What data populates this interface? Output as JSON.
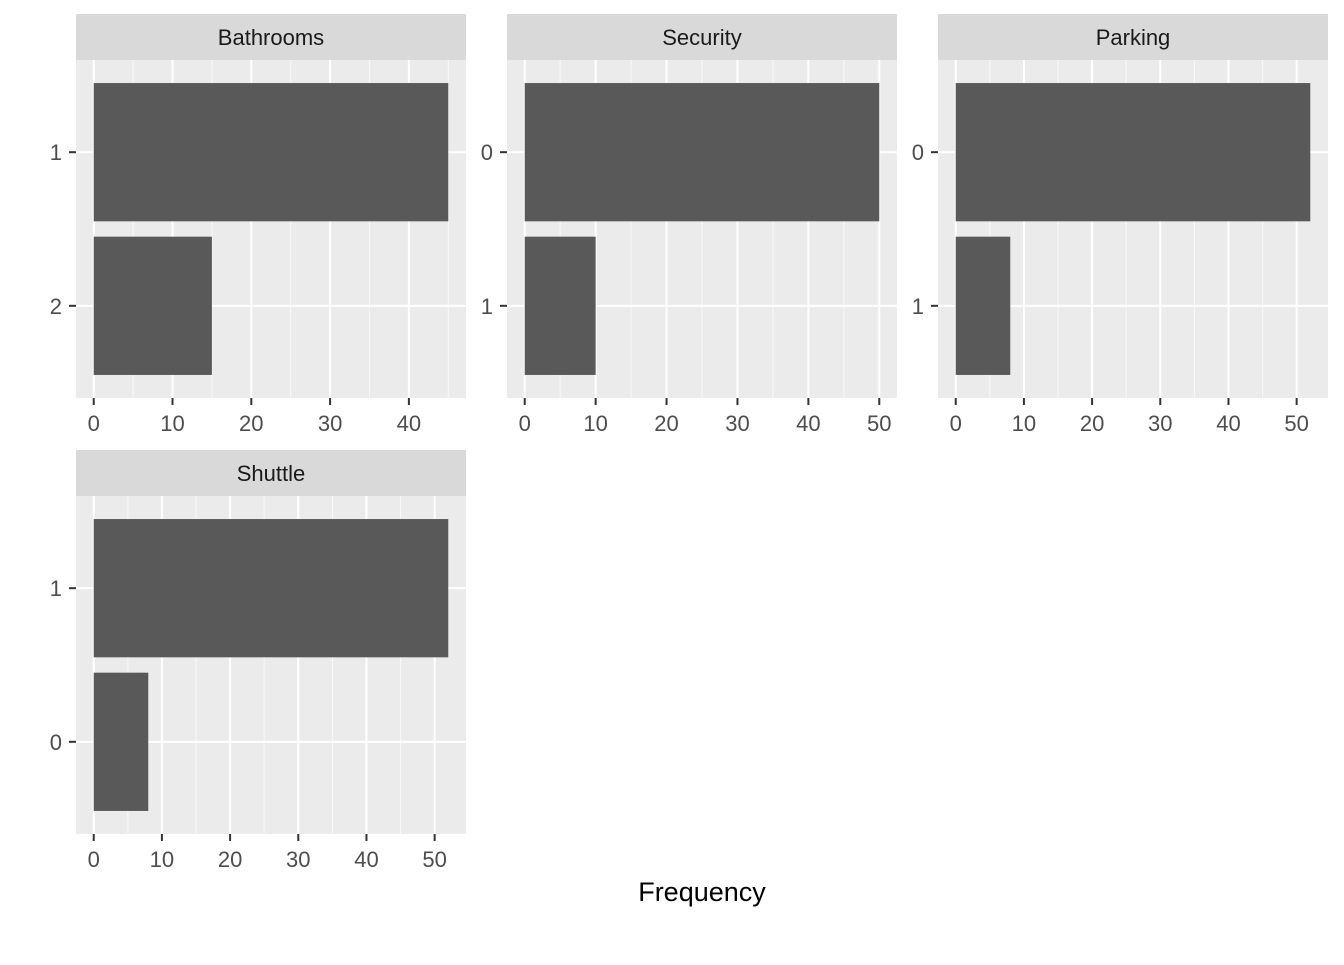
{
  "chart_data": {
    "type": "bar",
    "orientation": "horizontal",
    "facet_layout": "wrap",
    "xlabel": "Frequency",
    "ylabel": "",
    "grid": true,
    "colors": {
      "bar": "#595959",
      "panel_background": "#ebebeb",
      "strip_background": "#d9d9d9",
      "gridline": "#ffffff",
      "tick_text": "#4d4d4d",
      "strip_text": "#1a1a1a",
      "label_text": "#000000"
    },
    "panels": [
      {
        "title": "Bathrooms",
        "categories": [
          "1",
          "2"
        ],
        "values": [
          45,
          15
        ],
        "xlim": [
          -2.25,
          47.25
        ],
        "xticks": [
          "0",
          "10",
          "20",
          "30",
          "40"
        ],
        "xtick_values": [
          0,
          10,
          20,
          30,
          40
        ]
      },
      {
        "title": "Security",
        "categories": [
          "0",
          "1"
        ],
        "values": [
          50,
          10
        ],
        "xlim": [
          -2.5,
          52.5
        ],
        "xticks": [
          "0",
          "10",
          "20",
          "30",
          "40",
          "50"
        ],
        "xtick_values": [
          0,
          10,
          20,
          30,
          40,
          50
        ]
      },
      {
        "title": "Parking",
        "categories": [
          "0",
          "1"
        ],
        "values": [
          52,
          8
        ],
        "xlim": [
          -2.6,
          54.6
        ],
        "xticks": [
          "0",
          "10",
          "20",
          "30",
          "40",
          "50"
        ],
        "xtick_values": [
          0,
          10,
          20,
          30,
          40,
          50
        ]
      },
      {
        "title": "Shuttle",
        "categories": [
          "1",
          "0"
        ],
        "values": [
          52,
          8
        ],
        "xlim": [
          -2.6,
          54.6
        ],
        "xticks": [
          "0",
          "10",
          "20",
          "30",
          "40",
          "50"
        ],
        "xtick_values": [
          0,
          10,
          20,
          30,
          40,
          50
        ]
      }
    ]
  }
}
